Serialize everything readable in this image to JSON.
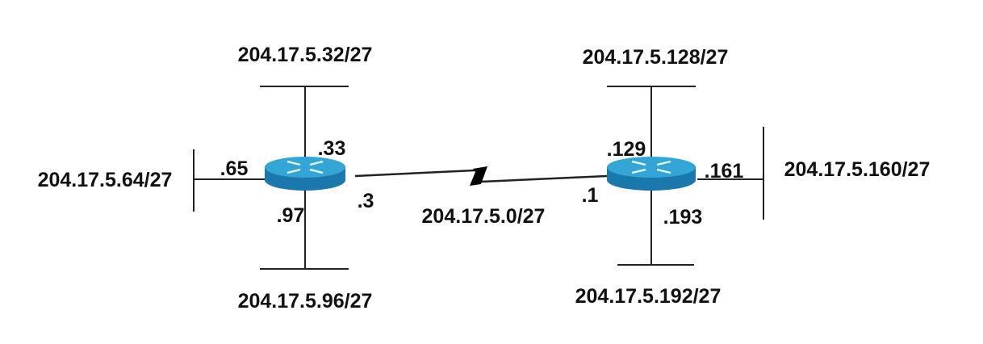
{
  "colors": {
    "router_top": "#33a6d6",
    "router_side": "#1a78ad",
    "router_arrows": "#e9f5fb",
    "line": "#222222",
    "serial_link": "#000000",
    "label": "#111111"
  },
  "routers": {
    "left": {
      "icon": "router-icon",
      "iface_top": ".33",
      "iface_left": ".65",
      "iface_bottom": ".97",
      "iface_serial": ".3"
    },
    "right": {
      "icon": "router-icon",
      "iface_top": ".129",
      "iface_right": ".161",
      "iface_bottom": ".193",
      "iface_serial": ".1"
    }
  },
  "networks": {
    "left_top": "204.17.5.32/27",
    "left_left": "204.17.5.64/27",
    "left_bottom": "204.17.5.96/27",
    "right_top": "204.17.5.128/27",
    "right_right": "204.17.5.160/27",
    "right_bottom": "204.17.5.192/27",
    "serial": "204.17.5.0/27"
  }
}
